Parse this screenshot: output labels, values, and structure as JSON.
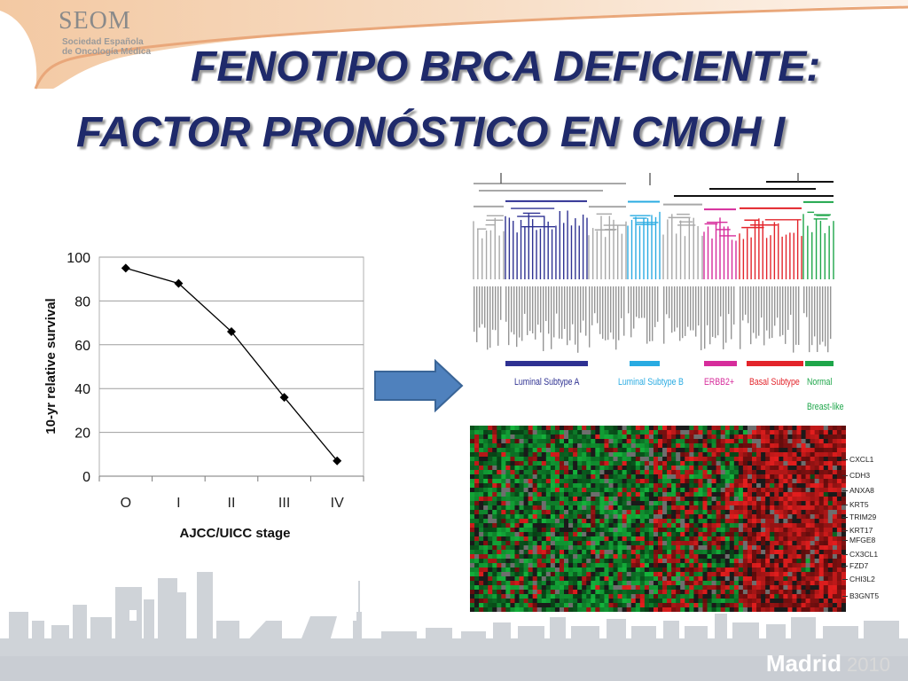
{
  "header": {
    "logo_text": "SEOM",
    "logo_subtitle_1": "Sociedad Española",
    "logo_subtitle_2": "de Oncología Médica"
  },
  "title": {
    "line1": "FENOTIPO BRCA DEFICIENTE:",
    "line2": "FACTOR PRONÓSTICO EN CMOH I"
  },
  "chart_data": {
    "type": "line",
    "categories": [
      "O",
      "I",
      "II",
      "III",
      "IV"
    ],
    "values": [
      95,
      88,
      66,
      36,
      7
    ],
    "title": "",
    "xlabel": "AJCC/UICC stage",
    "ylabel": "10-yr relative survival",
    "ylim": [
      0,
      100
    ],
    "yticks": [
      0,
      20,
      40,
      60,
      80,
      100
    ],
    "grid": true,
    "marker": "diamond"
  },
  "subtypes": [
    {
      "label": "Luminal Subtype A",
      "color": "#2e3192"
    },
    {
      "label": "Luminal Subtype B",
      "color": "#29abe2"
    },
    {
      "label": "ERBB2+",
      "color": "#d62c9b"
    },
    {
      "label": "Basal Subtype",
      "color": "#e3242b"
    },
    {
      "label": "Normal",
      "color": "#1ea64a"
    },
    {
      "label": "Breast-like",
      "color": "#1ea64a"
    }
  ],
  "genes": [
    "CXCL1",
    "CDH3",
    "ANXA8",
    "KRT5",
    "TRIM29",
    "KRT17",
    "MFGE8",
    "CX3CL1",
    "FZD7",
    "CHI3L2",
    "B3GNT5"
  ],
  "footer": {
    "city": "Madrid",
    "year": "2010"
  },
  "colors": {
    "title": "#1f2a6b",
    "logo_band": "#e8b48a",
    "skyline": "#cfd3d8",
    "arrow": "#4f81bd"
  }
}
